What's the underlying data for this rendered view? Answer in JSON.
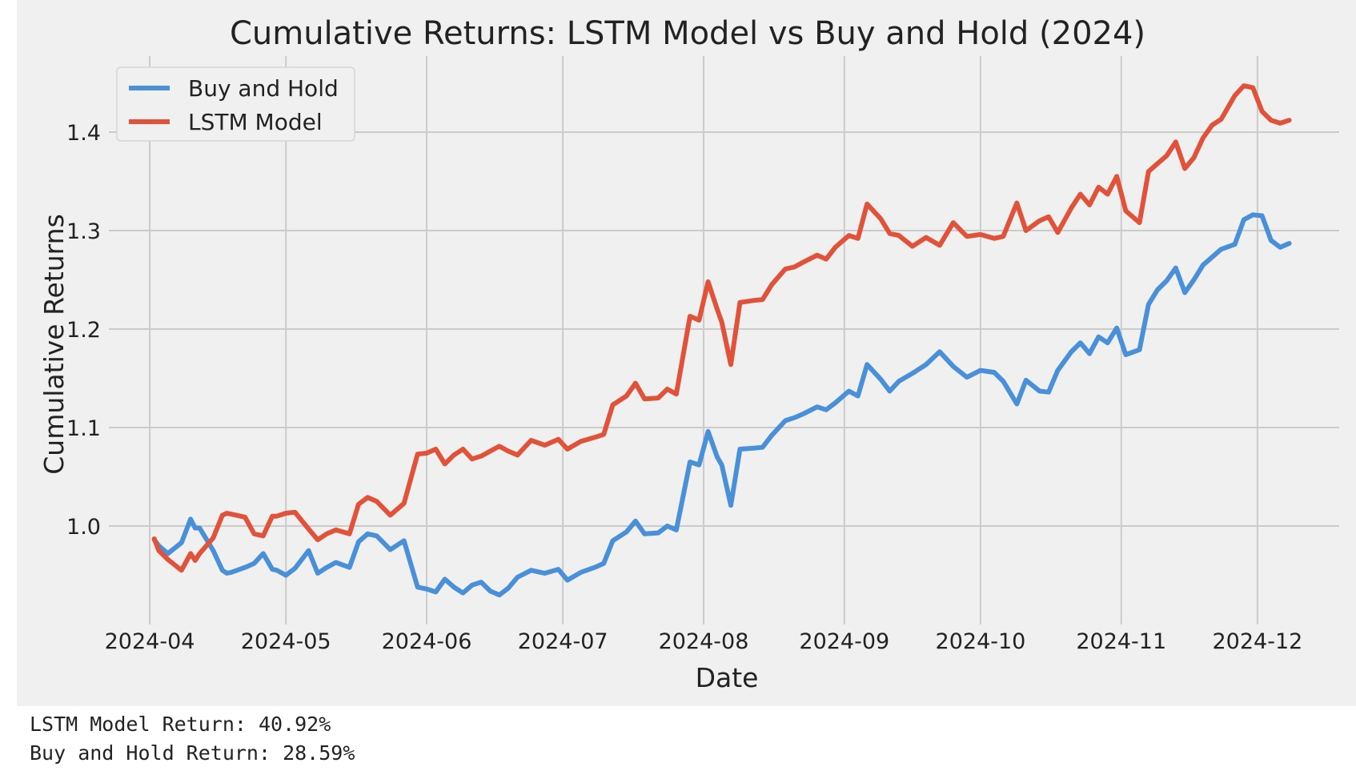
{
  "chart_data": {
    "type": "line",
    "title": "Cumulative Returns: LSTM Model vs Buy and Hold (2024)",
    "xlabel": "Date",
    "ylabel": "Cumulative Returns",
    "x_ticks": [
      "2024-04",
      "2024-05",
      "2024-06",
      "2024-07",
      "2024-08",
      "2024-09",
      "2024-10",
      "2024-11",
      "2024-12"
    ],
    "y_ticks": [
      1.0,
      1.1,
      1.2,
      1.3,
      1.4
    ],
    "ylim": [
      0.9,
      1.465
    ],
    "xlim": [
      "2024-03-23",
      "2024-12-19"
    ],
    "grid": true,
    "legend_position": "top-left",
    "colors": {
      "Buy and Hold": "#4a90d9",
      "LSTM Model": "#e0533a",
      "background": "#f0f0f0",
      "grid": "#cbcbcb"
    },
    "series": [
      {
        "name": "Buy and Hold",
        "x": [
          "2024-04-02",
          "2024-04-03",
          "2024-04-05",
          "2024-04-08",
          "2024-04-10",
          "2024-04-11",
          "2024-04-12",
          "2024-04-15",
          "2024-04-17",
          "2024-04-18",
          "2024-04-19",
          "2024-04-22",
          "2024-04-24",
          "2024-04-26",
          "2024-04-28",
          "2024-04-29",
          "2024-05-01",
          "2024-05-03",
          "2024-05-06",
          "2024-05-08",
          "2024-05-10",
          "2024-05-12",
          "2024-05-15",
          "2024-05-17",
          "2024-05-19",
          "2024-05-21",
          "2024-05-24",
          "2024-05-27",
          "2024-05-30",
          "2024-06-01",
          "2024-06-03",
          "2024-06-05",
          "2024-06-07",
          "2024-06-09",
          "2024-06-11",
          "2024-06-13",
          "2024-06-15",
          "2024-06-17",
          "2024-06-19",
          "2024-06-21",
          "2024-06-24",
          "2024-06-27",
          "2024-06-30",
          "2024-07-02",
          "2024-07-05",
          "2024-07-08",
          "2024-07-10",
          "2024-07-12",
          "2024-07-15",
          "2024-07-17",
          "2024-07-19",
          "2024-07-22",
          "2024-07-24",
          "2024-07-26",
          "2024-07-29",
          "2024-07-31",
          "2024-08-02",
          "2024-08-04",
          "2024-08-05",
          "2024-08-07",
          "2024-08-09",
          "2024-08-12",
          "2024-08-14",
          "2024-08-16",
          "2024-08-19",
          "2024-08-21",
          "2024-08-23",
          "2024-08-26",
          "2024-08-28",
          "2024-08-30",
          "2024-09-02",
          "2024-09-04",
          "2024-09-06",
          "2024-09-09",
          "2024-09-11",
          "2024-09-13",
          "2024-09-16",
          "2024-09-19",
          "2024-09-22",
          "2024-09-25",
          "2024-09-28",
          "2024-10-01",
          "2024-10-04",
          "2024-10-06",
          "2024-10-09",
          "2024-10-11",
          "2024-10-14",
          "2024-10-16",
          "2024-10-18",
          "2024-10-21",
          "2024-10-23",
          "2024-10-25",
          "2024-10-27",
          "2024-10-29",
          "2024-10-31",
          "2024-11-02",
          "2024-11-05",
          "2024-11-07",
          "2024-11-09",
          "2024-11-11",
          "2024-11-13",
          "2024-11-15",
          "2024-11-17",
          "2024-11-19",
          "2024-11-21",
          "2024-11-23",
          "2024-11-26",
          "2024-11-28",
          "2024-11-30",
          "2024-12-02",
          "2024-12-04",
          "2024-12-06",
          "2024-12-08"
        ],
        "values": [
          0.986,
          0.98,
          0.972,
          0.983,
          1.007,
          0.998,
          0.998,
          0.975,
          0.955,
          0.952,
          0.953,
          0.958,
          0.962,
          0.972,
          0.956,
          0.955,
          0.95,
          0.957,
          0.975,
          0.952,
          0.958,
          0.963,
          0.958,
          0.984,
          0.992,
          0.99,
          0.976,
          0.985,
          0.938,
          0.936,
          0.933,
          0.946,
          0.938,
          0.932,
          0.94,
          0.943,
          0.934,
          0.93,
          0.937,
          0.948,
          0.955,
          0.952,
          0.956,
          0.945,
          0.953,
          0.958,
          0.962,
          0.985,
          0.994,
          1.005,
          0.992,
          0.993,
          1.0,
          0.996,
          1.065,
          1.062,
          1.096,
          1.07,
          1.062,
          1.021,
          1.078,
          1.079,
          1.08,
          1.092,
          1.107,
          1.11,
          1.114,
          1.121,
          1.118,
          1.125,
          1.137,
          1.132,
          1.164,
          1.149,
          1.137,
          1.147,
          1.155,
          1.164,
          1.177,
          1.162,
          1.151,
          1.158,
          1.156,
          1.147,
          1.124,
          1.148,
          1.137,
          1.136,
          1.158,
          1.177,
          1.186,
          1.175,
          1.192,
          1.186,
          1.201,
          1.174,
          1.179,
          1.225,
          1.24,
          1.249,
          1.262,
          1.237,
          1.25,
          1.265,
          1.273,
          1.281,
          1.286,
          1.311,
          1.316,
          1.315,
          1.29,
          1.283,
          1.287
        ],
        "labels_source": "estimated_from_gridlines"
      },
      {
        "name": "LSTM Model",
        "x": [
          "2024-04-02",
          "2024-04-03",
          "2024-04-05",
          "2024-04-08",
          "2024-04-10",
          "2024-04-11",
          "2024-04-12",
          "2024-04-15",
          "2024-04-17",
          "2024-04-18",
          "2024-04-19",
          "2024-04-22",
          "2024-04-24",
          "2024-04-26",
          "2024-04-28",
          "2024-04-29",
          "2024-05-01",
          "2024-05-03",
          "2024-05-06",
          "2024-05-08",
          "2024-05-10",
          "2024-05-12",
          "2024-05-15",
          "2024-05-17",
          "2024-05-19",
          "2024-05-21",
          "2024-05-24",
          "2024-05-27",
          "2024-05-30",
          "2024-06-01",
          "2024-06-03",
          "2024-06-05",
          "2024-06-07",
          "2024-06-09",
          "2024-06-11",
          "2024-06-13",
          "2024-06-15",
          "2024-06-17",
          "2024-06-19",
          "2024-06-21",
          "2024-06-24",
          "2024-06-27",
          "2024-06-30",
          "2024-07-02",
          "2024-07-05",
          "2024-07-08",
          "2024-07-10",
          "2024-07-12",
          "2024-07-15",
          "2024-07-17",
          "2024-07-19",
          "2024-07-22",
          "2024-07-24",
          "2024-07-26",
          "2024-07-29",
          "2024-07-31",
          "2024-08-02",
          "2024-08-04",
          "2024-08-05",
          "2024-08-07",
          "2024-08-09",
          "2024-08-12",
          "2024-08-14",
          "2024-08-16",
          "2024-08-19",
          "2024-08-21",
          "2024-08-23",
          "2024-08-26",
          "2024-08-28",
          "2024-08-30",
          "2024-09-02",
          "2024-09-04",
          "2024-09-06",
          "2024-09-09",
          "2024-09-11",
          "2024-09-13",
          "2024-09-16",
          "2024-09-19",
          "2024-09-22",
          "2024-09-25",
          "2024-09-28",
          "2024-10-01",
          "2024-10-04",
          "2024-10-06",
          "2024-10-09",
          "2024-10-11",
          "2024-10-14",
          "2024-10-16",
          "2024-10-18",
          "2024-10-21",
          "2024-10-23",
          "2024-10-25",
          "2024-10-27",
          "2024-10-29",
          "2024-10-31",
          "2024-11-02",
          "2024-11-05",
          "2024-11-07",
          "2024-11-09",
          "2024-11-11",
          "2024-11-13",
          "2024-11-15",
          "2024-11-17",
          "2024-11-19",
          "2024-11-21",
          "2024-11-23",
          "2024-11-26",
          "2024-11-28",
          "2024-11-30",
          "2024-12-02",
          "2024-12-04",
          "2024-12-06",
          "2024-12-08"
        ],
        "values": [
          0.987,
          0.975,
          0.966,
          0.955,
          0.972,
          0.965,
          0.972,
          0.988,
          1.011,
          1.013,
          1.012,
          1.009,
          0.992,
          0.99,
          1.01,
          1.01,
          1.013,
          1.014,
          0.997,
          0.986,
          0.992,
          0.996,
          0.992,
          1.022,
          1.029,
          1.025,
          1.011,
          1.023,
          1.073,
          1.074,
          1.078,
          1.063,
          1.072,
          1.078,
          1.068,
          1.071,
          1.076,
          1.081,
          1.076,
          1.072,
          1.087,
          1.082,
          1.088,
          1.078,
          1.086,
          1.09,
          1.093,
          1.123,
          1.132,
          1.145,
          1.129,
          1.13,
          1.139,
          1.134,
          1.213,
          1.209,
          1.248,
          1.22,
          1.207,
          1.164,
          1.227,
          1.229,
          1.23,
          1.245,
          1.261,
          1.263,
          1.268,
          1.275,
          1.271,
          1.283,
          1.295,
          1.292,
          1.327,
          1.312,
          1.297,
          1.295,
          1.284,
          1.293,
          1.285,
          1.308,
          1.294,
          1.296,
          1.292,
          1.294,
          1.328,
          1.3,
          1.31,
          1.314,
          1.298,
          1.323,
          1.337,
          1.326,
          1.344,
          1.337,
          1.355,
          1.32,
          1.308,
          1.36,
          1.368,
          1.376,
          1.39,
          1.363,
          1.374,
          1.394,
          1.407,
          1.413,
          1.437,
          1.447,
          1.445,
          1.421,
          1.412,
          1.409,
          1.412
        ]
      }
    ]
  },
  "output_lines": [
    "LSTM Model Return: 40.92%",
    "Buy and Hold Return: 28.59%"
  ]
}
